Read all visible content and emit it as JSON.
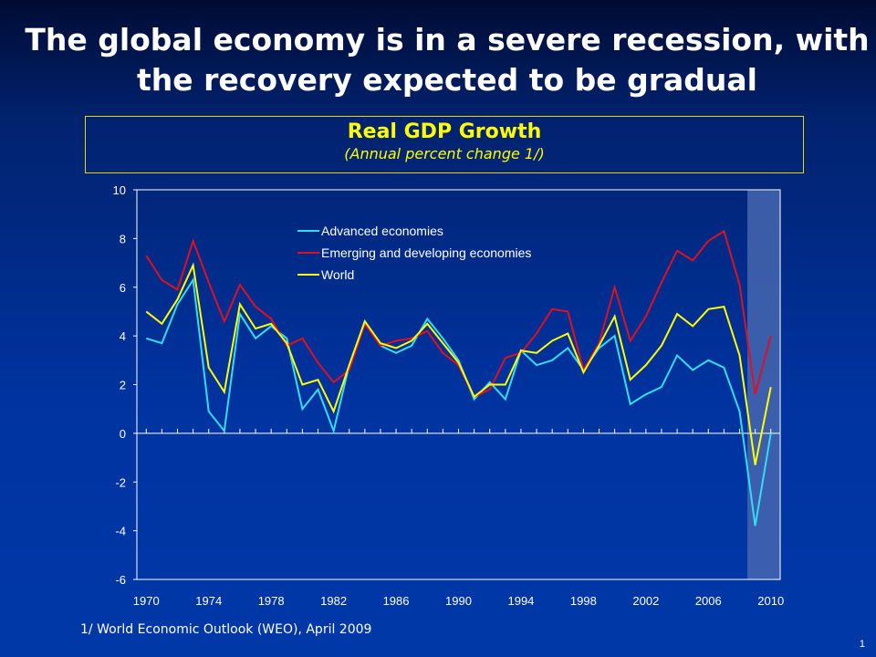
{
  "slide": {
    "title": "The global economy is in a severe recession, with the recovery expected to be gradual",
    "footnote": "1/ World Economic Outlook (WEO), April 2009",
    "page_number": "1"
  },
  "chart_data": {
    "type": "line",
    "title": "Real GDP Growth",
    "subtitle": "(Annual percent change 1/)",
    "xlabel": "",
    "ylabel": "",
    "x": [
      1970,
      1971,
      1972,
      1973,
      1974,
      1975,
      1976,
      1977,
      1978,
      1979,
      1980,
      1981,
      1982,
      1983,
      1984,
      1985,
      1986,
      1987,
      1988,
      1989,
      1990,
      1991,
      1992,
      1993,
      1994,
      1995,
      1996,
      1997,
      1998,
      1999,
      2000,
      2001,
      2002,
      2003,
      2004,
      2005,
      2006,
      2007,
      2008,
      2009,
      2010
    ],
    "xticks": [
      "1970",
      "1974",
      "1978",
      "1982",
      "1986",
      "1990",
      "1994",
      "1998",
      "2002",
      "2006",
      "2010"
    ],
    "yticks": [
      "10",
      "8",
      "6",
      "4",
      "2",
      "0",
      "-2",
      "-4",
      "-6"
    ],
    "ylim": [
      -6,
      10
    ],
    "xlim": [
      1969.4,
      2010.6
    ],
    "grid": false,
    "legend_position": "top-center",
    "shaded_region": {
      "from": 2009,
      "to": 2010,
      "color": "#4a6ab0"
    },
    "series": [
      {
        "name": "Advanced economies",
        "color": "#33ddee",
        "values": [
          3.9,
          3.7,
          5.3,
          6.3,
          0.9,
          0.1,
          4.9,
          3.9,
          4.4,
          3.9,
          1.0,
          1.8,
          0.1,
          2.8,
          4.6,
          3.6,
          3.3,
          3.6,
          4.7,
          3.9,
          3.0,
          1.4,
          2.1,
          1.4,
          3.4,
          2.8,
          3.0,
          3.5,
          2.6,
          3.5,
          4.0,
          1.2,
          1.6,
          1.9,
          3.2,
          2.6,
          3.0,
          2.7,
          0.9,
          -3.8,
          0.0
        ]
      },
      {
        "name": "Emerging and developing economies",
        "color": "#dd1122",
        "values": [
          7.3,
          6.3,
          5.9,
          7.9,
          6.2,
          4.6,
          6.1,
          5.2,
          4.7,
          3.6,
          3.9,
          2.9,
          2.1,
          2.6,
          4.5,
          3.6,
          3.8,
          3.9,
          4.2,
          3.3,
          2.8,
          1.5,
          1.8,
          3.1,
          3.3,
          4.1,
          5.1,
          5.0,
          2.6,
          3.7,
          6.0,
          3.8,
          4.8,
          6.2,
          7.5,
          7.1,
          7.9,
          8.3,
          6.1,
          1.6,
          4.0
        ]
      },
      {
        "name": "World",
        "color": "#ffff00",
        "values": [
          5.0,
          4.5,
          5.5,
          6.9,
          2.7,
          1.7,
          5.3,
          4.3,
          4.5,
          3.7,
          2.0,
          2.2,
          0.9,
          2.8,
          4.6,
          3.7,
          3.5,
          3.8,
          4.5,
          3.7,
          2.9,
          1.5,
          2.0,
          2.0,
          3.4,
          3.3,
          3.8,
          4.1,
          2.5,
          3.6,
          4.8,
          2.2,
          2.8,
          3.6,
          4.9,
          4.4,
          5.1,
          5.2,
          3.2,
          -1.3,
          1.9
        ]
      }
    ]
  }
}
